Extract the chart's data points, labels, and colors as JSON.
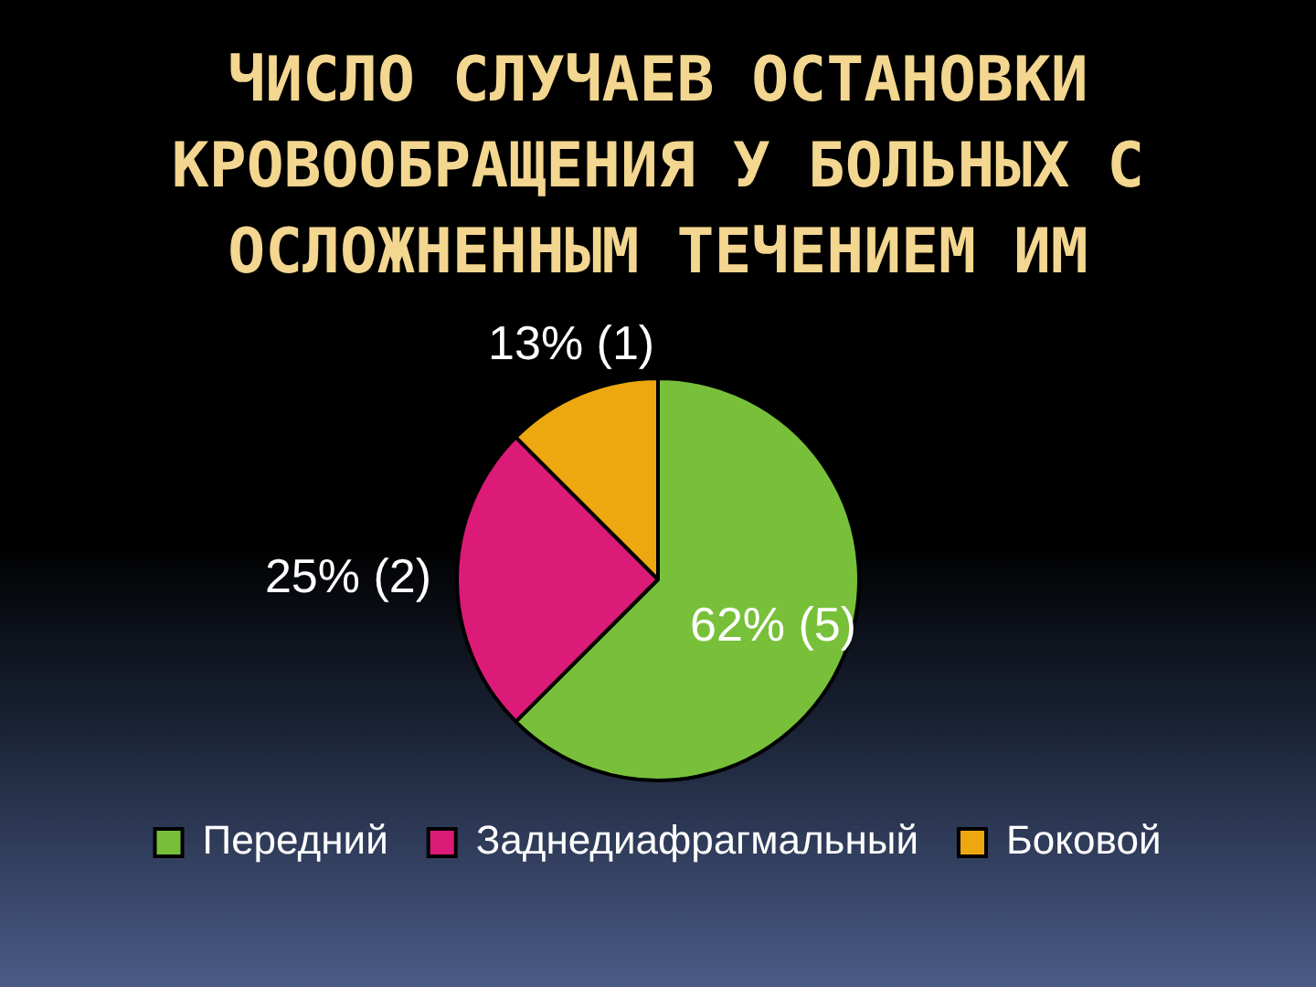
{
  "chart_data": {
    "type": "pie",
    "title": "ЧИСЛО СЛУЧАЕВ ОСТАНОВКИ КРОВООБРАЩЕНИЯ У БОЛЬНЫХ С ОСЛОЖНЕННЫМ ТЕЧЕНИЕМ ИМ",
    "categories": [
      "Передний",
      "Заднедиафрагмальный",
      "Боковой"
    ],
    "values": [
      5,
      2,
      1
    ],
    "value_labels": [
      "62% (5)",
      "25% (2)",
      "13% (1)"
    ],
    "colors": [
      "#78c03a",
      "#dc1a78",
      "#eda80f"
    ],
    "legend": "bottom"
  }
}
